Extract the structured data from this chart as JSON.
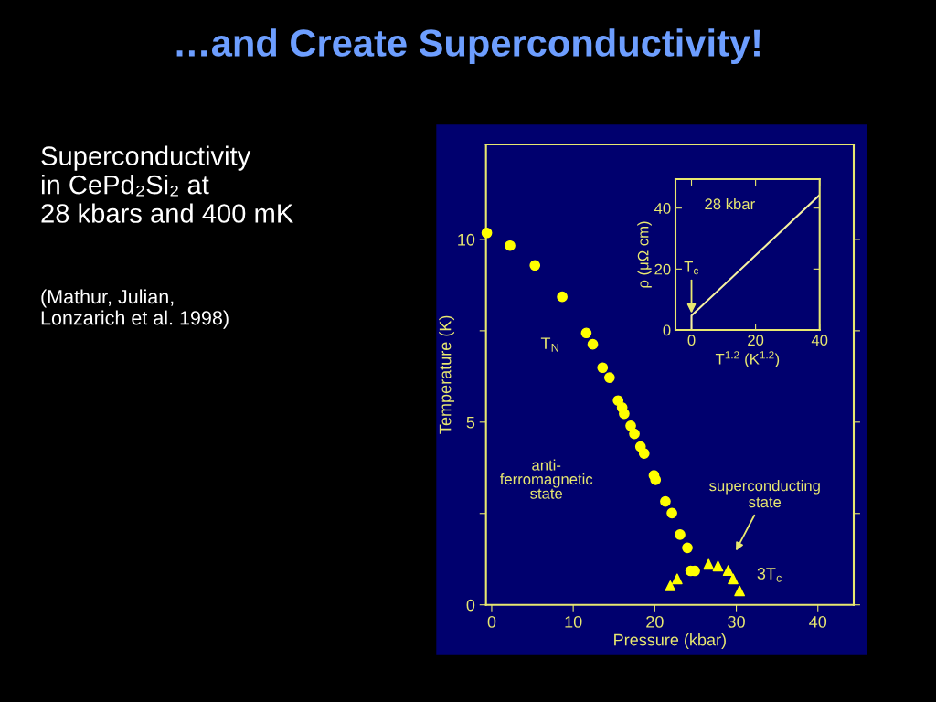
{
  "chart_data": [
    {
      "type": "scatter",
      "title": "…and Create Superconductivity!",
      "xlabel": "Pressure (kbar)",
      "ylabel": "Temperature (K)",
      "xlim": [
        -0.7,
        44.4
      ],
      "ylim": [
        0,
        12.6
      ],
      "xticks": [
        0,
        10,
        20,
        30,
        40
      ],
      "yticks": [
        0,
        {
          "value": 2.5,
          "label": null
        },
        5,
        {
          "value": 7.5,
          "label": null
        },
        10
      ],
      "grid": false,
      "legend": false,
      "series": [
        {
          "name": "T$_{N}$",
          "color": "#ffff00",
          "marker": "circle",
          "x": [
            -0.6,
            2.25,
            5.3,
            8.65,
            11.6,
            12.4,
            13.6,
            14.45,
            15.5,
            16.0,
            16.25,
            17.05,
            17.5,
            18.25,
            18.7,
            19.9,
            20.1,
            21.3,
            22.1,
            23.1,
            24.0,
            24.4,
            24.9
          ],
          "values": [
            10.18,
            9.83,
            9.29,
            8.43,
            7.44,
            7.13,
            6.49,
            6.22,
            5.59,
            5.4,
            5.23,
            4.9,
            4.68,
            4.33,
            4.14,
            3.54,
            3.42,
            2.83,
            2.51,
            1.92,
            1.56,
            0.93,
            0.93
          ]
        },
        {
          "name": "3T$_{c}$",
          "color": "#ffff00",
          "marker": "triangle",
          "x": [
            21.9,
            22.75,
            26.6,
            27.75,
            29.0,
            29.6,
            30.4
          ],
          "values": [
            0.52,
            0.71,
            1.11,
            1.06,
            0.94,
            0.71,
            0.38
          ]
        }
      ],
      "annotations": [
        "Superconductivity\nin CePd₂Si₂ at\n28 kbars and 400 mK",
        "(Mathur, Julian,\nLonzarich et al. 1998)",
        "anti-\nferromagnetic\nstate",
        "superconducting\nstate"
      ]
    },
    {
      "type": "line",
      "xlabel": "T$^{1.2}$ (K$^{1.2}$)",
      "ylabel": "ρ (μΩ cm)",
      "xlim": [
        -5,
        40
      ],
      "ylim": [
        0,
        49.5
      ],
      "xticks": [
        0,
        20,
        40
      ],
      "yticks": [
        0,
        20,
        40
      ],
      "grid": false,
      "legend": false,
      "series": [
        {
          "color": "#f5f0a0",
          "x": [
            0,
            0,
            40
          ],
          "values": [
            0,
            4.7,
            44.3
          ]
        }
      ],
      "annotations": [
        "28 kbar",
        {
          "text": "T$_{c}$",
          "x": 0,
          "y": 4.7
        }
      ]
    }
  ]
}
